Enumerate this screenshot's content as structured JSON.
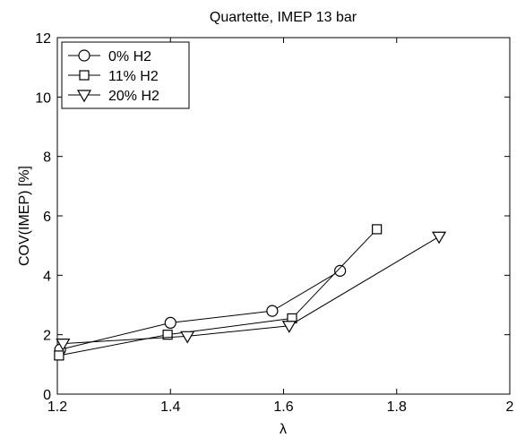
{
  "chart_data": {
    "type": "line",
    "title": "Quartette, IMEP 13 bar",
    "xlabel": "λ",
    "ylabel": "COV(IMEP) [%]",
    "xlim": [
      1.2,
      2.0
    ],
    "ylim": [
      0,
      12
    ],
    "xticks": [
      1.2,
      1.4,
      1.6,
      1.8,
      2.0
    ],
    "xtick_labels": [
      "1.2",
      "1.4",
      "1.6",
      "1.8",
      "2"
    ],
    "yticks": [
      0,
      2,
      4,
      6,
      8,
      10,
      12
    ],
    "ytick_labels": [
      "0",
      "2",
      "4",
      "6",
      "8",
      "10",
      "12"
    ],
    "grid": false,
    "legend_position": "top-left",
    "series": [
      {
        "name": "0% H2",
        "marker": "circle",
        "x": [
          1.205,
          1.4,
          1.58,
          1.7
        ],
        "y": [
          1.5,
          2.4,
          2.8,
          4.15
        ]
      },
      {
        "name": "11% H2",
        "marker": "square",
        "x": [
          1.203,
          1.395,
          1.615,
          1.765
        ],
        "y": [
          1.3,
          2.0,
          2.55,
          5.55
        ]
      },
      {
        "name": "20% H2",
        "marker": "triangle-down",
        "x": [
          1.21,
          1.43,
          1.61,
          1.875
        ],
        "y": [
          1.7,
          1.95,
          2.3,
          5.3
        ]
      }
    ]
  }
}
